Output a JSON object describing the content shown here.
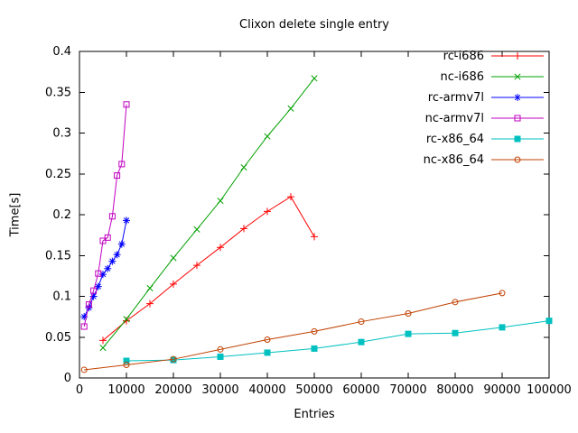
{
  "chart_data": {
    "type": "line",
    "title": "Clixon delete single entry",
    "xlabel": "Entries",
    "ylabel": "Time[s]",
    "xlim": [
      0,
      100000
    ],
    "ylim": [
      0,
      0.4
    ],
    "grid": false,
    "legend_position": "top-right-inside",
    "x_ticks": [
      0,
      10000,
      20000,
      30000,
      40000,
      50000,
      60000,
      70000,
      80000,
      90000,
      100000
    ],
    "x_tick_labels": [
      "0",
      "10000",
      "20000",
      "30000",
      "40000",
      "50000",
      "60000",
      "70000",
      "80000",
      "90000",
      "100000"
    ],
    "y_ticks": [
      0,
      0.05,
      0.1,
      0.15,
      0.2,
      0.25,
      0.3,
      0.35,
      0.4
    ],
    "y_tick_labels": [
      "0",
      "0.05",
      "0.1",
      "0.15",
      "0.2",
      "0.25",
      "0.3",
      "0.35",
      "0.4"
    ],
    "series": [
      {
        "name": "rc-i686",
        "color": "#ff0000",
        "marker": "plus",
        "points": [
          [
            5000,
            0.046
          ],
          [
            10000,
            0.07
          ],
          [
            15000,
            0.091
          ],
          [
            20000,
            0.115
          ],
          [
            25000,
            0.138
          ],
          [
            30000,
            0.16
          ],
          [
            35000,
            0.183
          ],
          [
            40000,
            0.204
          ],
          [
            45000,
            0.222
          ],
          [
            50000,
            0.173
          ]
        ]
      },
      {
        "name": "nc-i686",
        "color": "#00a000",
        "marker": "cross",
        "points": [
          [
            5000,
            0.037
          ],
          [
            10000,
            0.072
          ],
          [
            15000,
            0.11
          ],
          [
            20000,
            0.147
          ],
          [
            25000,
            0.182
          ],
          [
            30000,
            0.217
          ],
          [
            35000,
            0.258
          ],
          [
            40000,
            0.296
          ],
          [
            45000,
            0.33
          ],
          [
            50000,
            0.367
          ]
        ]
      },
      {
        "name": "rc-armv7l",
        "color": "#0000ff",
        "marker": "asterisk",
        "points": [
          [
            1000,
            0.075
          ],
          [
            2000,
            0.086
          ],
          [
            3000,
            0.1
          ],
          [
            4000,
            0.112
          ],
          [
            5000,
            0.127
          ],
          [
            6000,
            0.134
          ],
          [
            7000,
            0.143
          ],
          [
            8000,
            0.151
          ],
          [
            9000,
            0.164
          ],
          [
            10000,
            0.193
          ]
        ]
      },
      {
        "name": "nc-armv7l",
        "color": "#c000c0",
        "marker": "square-open",
        "points": [
          [
            1000,
            0.063
          ],
          [
            2000,
            0.09
          ],
          [
            3000,
            0.107
          ],
          [
            4000,
            0.128
          ],
          [
            5000,
            0.168
          ],
          [
            6000,
            0.172
          ],
          [
            7000,
            0.198
          ],
          [
            8000,
            0.248
          ],
          [
            9000,
            0.262
          ],
          [
            10000,
            0.335
          ]
        ]
      },
      {
        "name": "rc-x86_64",
        "color": "#00c0c0",
        "marker": "square-filled",
        "points": [
          [
            10000,
            0.021
          ],
          [
            20000,
            0.022
          ],
          [
            30000,
            0.026
          ],
          [
            40000,
            0.031
          ],
          [
            50000,
            0.036
          ],
          [
            60000,
            0.044
          ],
          [
            70000,
            0.054
          ],
          [
            80000,
            0.055
          ],
          [
            90000,
            0.062
          ],
          [
            100000,
            0.07
          ]
        ]
      },
      {
        "name": "nc-x86_64",
        "color": "#c04000",
        "marker": "circle-open",
        "points": [
          [
            1000,
            0.01
          ],
          [
            10000,
            0.016
          ],
          [
            20000,
            0.023
          ],
          [
            30000,
            0.035
          ],
          [
            40000,
            0.047
          ],
          [
            50000,
            0.057
          ],
          [
            60000,
            0.069
          ],
          [
            70000,
            0.079
          ],
          [
            80000,
            0.093
          ],
          [
            90000,
            0.104
          ]
        ]
      }
    ]
  }
}
